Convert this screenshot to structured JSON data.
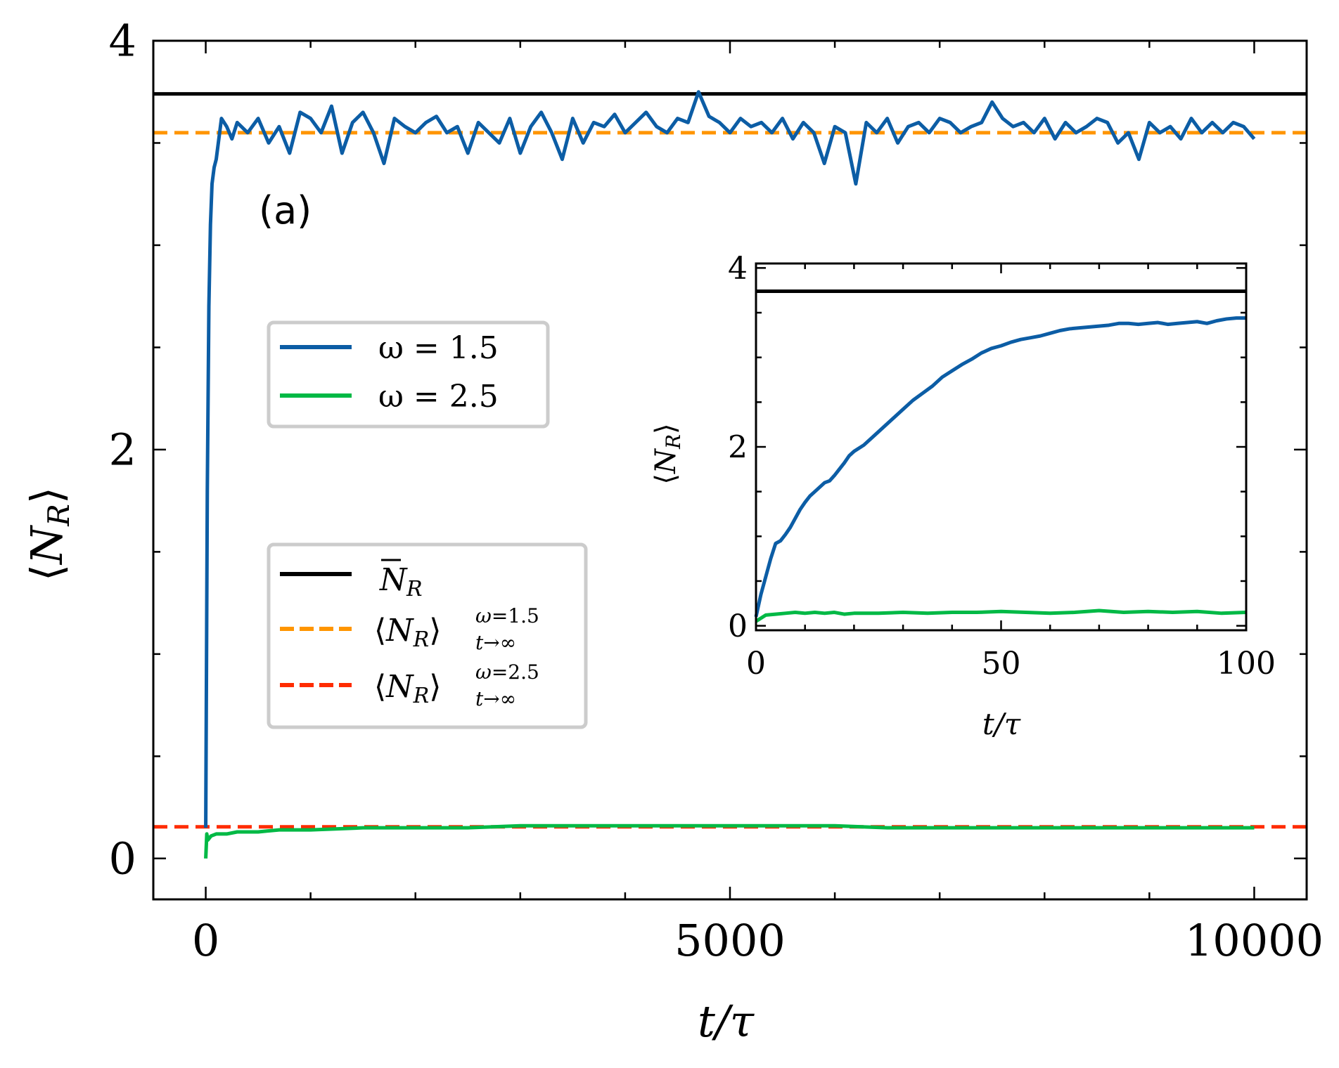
{
  "chart_data": [
    {
      "type": "line",
      "panel_label": "(a)",
      "xlabel": "t/τ",
      "ylabel": "⟨N_R⟩",
      "xlim": [
        -500,
        10500
      ],
      "ylim": [
        -0.2,
        4.0
      ],
      "x_ticks": [
        0,
        5000,
        10000
      ],
      "y_ticks": [
        0,
        2,
        4
      ],
      "grid": false,
      "series": [
        {
          "name": "ω = 1.5",
          "color": "#0c5da5",
          "x": [
            0,
            15,
            30,
            45,
            60,
            80,
            100,
            150,
            200,
            250,
            300,
            400,
            500,
            600,
            700,
            800,
            900,
            1000,
            1100,
            1200,
            1300,
            1400,
            1500,
            1600,
            1700,
            1800,
            1900,
            2000,
            2100,
            2200,
            2300,
            2400,
            2500,
            2600,
            2700,
            2800,
            2900,
            3000,
            3100,
            3200,
            3300,
            3400,
            3500,
            3600,
            3700,
            3800,
            3900,
            4000,
            4100,
            4200,
            4300,
            4400,
            4500,
            4600,
            4700,
            4800,
            4900,
            5000,
            5100,
            5200,
            5300,
            5400,
            5500,
            5600,
            5700,
            5800,
            5900,
            6000,
            6100,
            6200,
            6300,
            6400,
            6500,
            6600,
            6700,
            6800,
            6900,
            7000,
            7100,
            7200,
            7300,
            7400,
            7500,
            7600,
            7700,
            7800,
            7900,
            8000,
            8100,
            8200,
            8300,
            8400,
            8500,
            8600,
            8700,
            8800,
            8900,
            9000,
            9100,
            9200,
            9300,
            9400,
            9500,
            9600,
            9700,
            9800,
            9900,
            10000
          ],
          "y": [
            0.15,
            1.8,
            2.7,
            3.1,
            3.3,
            3.38,
            3.42,
            3.62,
            3.58,
            3.52,
            3.6,
            3.55,
            3.62,
            3.5,
            3.58,
            3.45,
            3.65,
            3.62,
            3.55,
            3.68,
            3.45,
            3.6,
            3.65,
            3.55,
            3.4,
            3.62,
            3.58,
            3.55,
            3.6,
            3.63,
            3.55,
            3.58,
            3.45,
            3.6,
            3.55,
            3.5,
            3.62,
            3.45,
            3.58,
            3.65,
            3.55,
            3.42,
            3.62,
            3.5,
            3.6,
            3.58,
            3.64,
            3.55,
            3.6,
            3.65,
            3.58,
            3.55,
            3.62,
            3.6,
            3.75,
            3.63,
            3.6,
            3.55,
            3.62,
            3.58,
            3.6,
            3.55,
            3.62,
            3.52,
            3.6,
            3.55,
            3.4,
            3.58,
            3.55,
            3.3,
            3.6,
            3.55,
            3.62,
            3.5,
            3.58,
            3.6,
            3.55,
            3.62,
            3.6,
            3.55,
            3.58,
            3.6,
            3.7,
            3.62,
            3.58,
            3.6,
            3.55,
            3.62,
            3.52,
            3.6,
            3.55,
            3.58,
            3.62,
            3.6,
            3.5,
            3.55,
            3.42,
            3.6,
            3.55,
            3.58,
            3.52,
            3.62,
            3.55,
            3.6,
            3.55,
            3.6,
            3.58,
            3.52
          ]
        },
        {
          "name": "ω = 2.5",
          "color": "#00b945",
          "x": [
            0,
            10,
            20,
            50,
            100,
            200,
            300,
            500,
            700,
            1000,
            1500,
            2000,
            2500,
            3000,
            3500,
            4000,
            4500,
            5000,
            5500,
            6000,
            6500,
            7000,
            7500,
            8000,
            8500,
            9000,
            9500,
            10000
          ],
          "y": [
            0.0,
            0.12,
            0.09,
            0.11,
            0.12,
            0.12,
            0.13,
            0.13,
            0.14,
            0.14,
            0.15,
            0.15,
            0.15,
            0.16,
            0.16,
            0.16,
            0.16,
            0.16,
            0.16,
            0.16,
            0.15,
            0.15,
            0.15,
            0.15,
            0.15,
            0.15,
            0.15,
            0.15
          ]
        }
      ],
      "reference_lines": [
        {
          "name": "N̄_R",
          "y": 3.74,
          "color": "#000000",
          "style": "solid"
        },
        {
          "name": "⟨N_R⟩_{t→∞}^{ω=1.5}",
          "y": 3.55,
          "color": "#ff9500",
          "style": "dashed"
        },
        {
          "name": "⟨N_R⟩_{t→∞}^{ω=2.5}",
          "y": 0.155,
          "color": "#ff2c00",
          "style": "dashed"
        }
      ],
      "legends": [
        {
          "entries": [
            "ω = 1.5",
            "ω = 2.5"
          ],
          "placement": "center-left"
        },
        {
          "entries": [
            "N̄_R",
            "⟨N_R⟩_{t→∞}^{ω=1.5}",
            "⟨N_R⟩_{t→∞}^{ω=2.5}"
          ],
          "placement": "lower-left"
        }
      ]
    },
    {
      "type": "line",
      "role": "inset",
      "xlabel": "t/τ",
      "ylabel": "⟨N_R⟩",
      "xlim": [
        0,
        100
      ],
      "ylim": [
        -0.05,
        4.05
      ],
      "x_ticks": [
        0,
        50,
        100
      ],
      "y_ticks": [
        0,
        2,
        4
      ],
      "grid": false,
      "series": [
        {
          "name": "ω = 1.5",
          "color": "#0c5da5",
          "x": [
            0,
            1,
            2,
            3,
            4,
            5,
            6,
            7,
            8,
            9,
            10,
            11,
            12,
            13,
            14,
            15,
            16,
            17,
            18,
            19,
            20,
            22,
            24,
            26,
            28,
            30,
            32,
            34,
            36,
            38,
            40,
            42,
            44,
            46,
            48,
            50,
            52,
            54,
            56,
            58,
            60,
            62,
            64,
            66,
            68,
            70,
            72,
            74,
            76,
            78,
            80,
            82,
            84,
            86,
            88,
            90,
            92,
            94,
            96,
            98,
            100
          ],
          "y": [
            0.1,
            0.35,
            0.55,
            0.75,
            0.92,
            0.95,
            1.02,
            1.1,
            1.2,
            1.3,
            1.38,
            1.45,
            1.5,
            1.55,
            1.6,
            1.62,
            1.68,
            1.75,
            1.82,
            1.9,
            1.95,
            2.02,
            2.12,
            2.22,
            2.32,
            2.42,
            2.52,
            2.6,
            2.68,
            2.78,
            2.85,
            2.92,
            2.98,
            3.05,
            3.1,
            3.13,
            3.17,
            3.2,
            3.22,
            3.24,
            3.27,
            3.3,
            3.32,
            3.33,
            3.34,
            3.35,
            3.36,
            3.38,
            3.38,
            3.37,
            3.38,
            3.39,
            3.37,
            3.38,
            3.39,
            3.4,
            3.38,
            3.41,
            3.43,
            3.44,
            3.44
          ]
        },
        {
          "name": "ω = 2.5",
          "color": "#00b945",
          "x": [
            0,
            2,
            4,
            6,
            8,
            10,
            12,
            14,
            16,
            18,
            20,
            25,
            30,
            35,
            40,
            45,
            50,
            55,
            60,
            65,
            70,
            75,
            80,
            85,
            90,
            95,
            100
          ],
          "y": [
            0.05,
            0.12,
            0.13,
            0.14,
            0.15,
            0.14,
            0.15,
            0.14,
            0.15,
            0.13,
            0.14,
            0.14,
            0.15,
            0.14,
            0.15,
            0.15,
            0.16,
            0.15,
            0.14,
            0.15,
            0.17,
            0.15,
            0.16,
            0.15,
            0.16,
            0.14,
            0.15
          ]
        }
      ],
      "reference_lines": [
        {
          "name": "N̄_R",
          "y": 3.74,
          "color": "#000000",
          "style": "solid"
        }
      ]
    }
  ],
  "text": {
    "panel_label": "(a)",
    "x_label_main": "t/τ",
    "x_label_inset": "t/τ",
    "legend1": [
      "ω = 1.5",
      "ω = 2.5"
    ]
  }
}
